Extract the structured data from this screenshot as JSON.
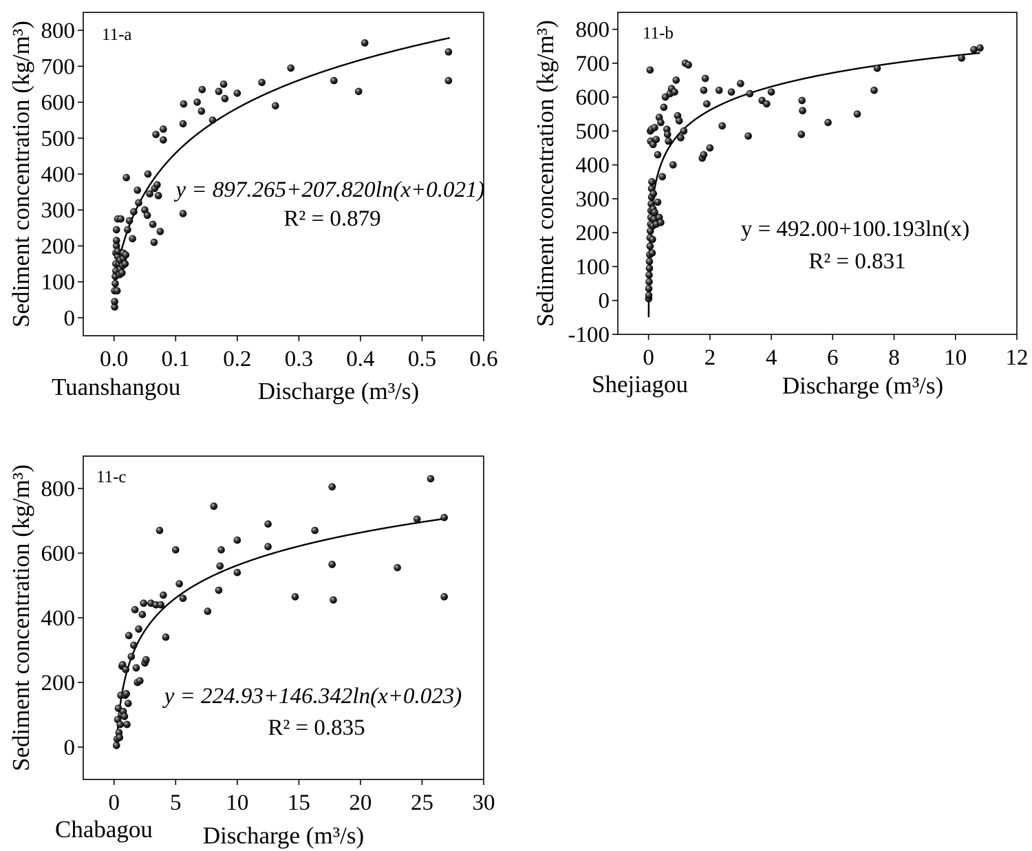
{
  "figure": {
    "panels": [
      {
        "tag": "11-a",
        "site": "Tuanshangou",
        "xlabel": "Discharge (m³/s)",
        "ylabel": "Sediment concentration (kg/m³)",
        "equation": "y = 897.265+207.820ln(x+0.021)",
        "r2": "R² = 0.879"
      },
      {
        "tag": "11-b",
        "site": "Shejiagou",
        "xlabel": "Discharge (m³/s)",
        "ylabel": "Sediment concentration (kg/m³)",
        "equation": "y = 492.00+100.193ln(x)",
        "r2": "R² = 0.831"
      },
      {
        "tag": "11-c",
        "site": "Chabagou",
        "xlabel": "Discharge (m³/s)",
        "ylabel": "Sediment concentration (kg/m³)",
        "equation": "y = 224.93+146.342ln(x+0.023)",
        "r2": "R² = 0.835"
      }
    ]
  },
  "chart_data": [
    {
      "type": "scatter",
      "title": "11-a",
      "xlabel": "Discharge (m³/s)",
      "ylabel": "Sediment concentration (kg/m³)",
      "xlim": [
        -0.05,
        0.6
      ],
      "ylim": [
        -50,
        850
      ],
      "xticks": [
        0.0,
        0.1,
        0.2,
        0.3,
        0.4,
        0.5,
        0.6
      ],
      "xtick_labels": [
        "0.0",
        "0.1",
        "0.2",
        "0.3",
        "0.4",
        "0.5",
        "0.6"
      ],
      "yticks": [
        0,
        100,
        200,
        300,
        400,
        500,
        600,
        700,
        800
      ],
      "fit": {
        "a": 897.265,
        "b": 207.82,
        "c": 0.021,
        "x_range": [
          0.0,
          0.545
        ]
      },
      "points": [
        [
          0.001,
          30
        ],
        [
          0.001,
          45
        ],
        [
          0.001,
          75
        ],
        [
          0.002,
          95
        ],
        [
          0.002,
          115
        ],
        [
          0.003,
          130
        ],
        [
          0.003,
          150
        ],
        [
          0.003,
          180
        ],
        [
          0.004,
          200
        ],
        [
          0.004,
          215
        ],
        [
          0.004,
          245
        ],
        [
          0.005,
          75
        ],
        [
          0.006,
          170
        ],
        [
          0.006,
          185
        ],
        [
          0.006,
          275
        ],
        [
          0.008,
          150
        ],
        [
          0.009,
          120
        ],
        [
          0.01,
          135
        ],
        [
          0.01,
          160
        ],
        [
          0.011,
          275
        ],
        [
          0.013,
          125
        ],
        [
          0.014,
          145
        ],
        [
          0.015,
          165
        ],
        [
          0.015,
          180
        ],
        [
          0.018,
          150
        ],
        [
          0.019,
          175
        ],
        [
          0.02,
          390
        ],
        [
          0.022,
          245
        ],
        [
          0.025,
          270
        ],
        [
          0.03,
          220
        ],
        [
          0.032,
          295
        ],
        [
          0.038,
          355
        ],
        [
          0.04,
          320
        ],
        [
          0.05,
          300
        ],
        [
          0.054,
          285
        ],
        [
          0.055,
          400
        ],
        [
          0.058,
          345
        ],
        [
          0.063,
          260
        ],
        [
          0.065,
          210
        ],
        [
          0.066,
          360
        ],
        [
          0.068,
          510
        ],
        [
          0.07,
          370
        ],
        [
          0.072,
          340
        ],
        [
          0.075,
          240
        ],
        [
          0.08,
          525
        ],
        [
          0.08,
          495
        ],
        [
          0.112,
          290
        ],
        [
          0.112,
          540
        ],
        [
          0.113,
          595
        ],
        [
          0.135,
          600
        ],
        [
          0.142,
          575
        ],
        [
          0.143,
          635
        ],
        [
          0.16,
          550
        ],
        [
          0.17,
          630
        ],
        [
          0.178,
          650
        ],
        [
          0.18,
          610
        ],
        [
          0.2,
          625
        ],
        [
          0.24,
          655
        ],
        [
          0.262,
          590
        ],
        [
          0.287,
          695
        ],
        [
          0.357,
          660
        ],
        [
          0.397,
          630
        ],
        [
          0.407,
          765
        ],
        [
          0.543,
          740
        ],
        [
          0.543,
          660
        ]
      ]
    },
    {
      "type": "scatter",
      "title": "11-b",
      "xlabel": "Discharge (m³/s)",
      "ylabel": "Sediment concentration (kg/m³)",
      "xlim": [
        -1,
        12
      ],
      "ylim": [
        -100,
        850
      ],
      "xticks": [
        0,
        2,
        4,
        6,
        8,
        10,
        12
      ],
      "xtick_labels": [
        "0",
        "2",
        "4",
        "6",
        "8",
        "10",
        "12"
      ],
      "yticks": [
        -100,
        0,
        100,
        200,
        300,
        400,
        500,
        600,
        700,
        800
      ],
      "fit": {
        "a": 492.0,
        "b": 100.193,
        "c": 0,
        "x_range": [
          0.0045,
          10.8
        ]
      },
      "points": [
        [
          0.005,
          5
        ],
        [
          0.01,
          15
        ],
        [
          0.01,
          35
        ],
        [
          0.02,
          55
        ],
        [
          0.02,
          75
        ],
        [
          0.03,
          95
        ],
        [
          0.03,
          115
        ],
        [
          0.04,
          135
        ],
        [
          0.05,
          160
        ],
        [
          0.05,
          185
        ],
        [
          0.06,
          205
        ],
        [
          0.07,
          225
        ],
        [
          0.08,
          245
        ],
        [
          0.08,
          265
        ],
        [
          0.09,
          285
        ],
        [
          0.1,
          305
        ],
        [
          0.1,
          330
        ],
        [
          0.11,
          350
        ],
        [
          0.12,
          140
        ],
        [
          0.13,
          180
        ],
        [
          0.14,
          220
        ],
        [
          0.15,
          270
        ],
        [
          0.16,
          315
        ],
        [
          0.18,
          240
        ],
        [
          0.2,
          260
        ],
        [
          0.25,
          225
        ],
        [
          0.3,
          290
        ],
        [
          0.35,
          245
        ],
        [
          0.4,
          230
        ],
        [
          0.05,
          680
        ],
        [
          0.06,
          500
        ],
        [
          0.07,
          470
        ],
        [
          0.1,
          505
        ],
        [
          0.15,
          460
        ],
        [
          0.2,
          510
        ],
        [
          0.25,
          475
        ],
        [
          0.3,
          430
        ],
        [
          0.35,
          540
        ],
        [
          0.4,
          525
        ],
        [
          0.45,
          365
        ],
        [
          0.5,
          570
        ],
        [
          0.55,
          600
        ],
        [
          0.6,
          505
        ],
        [
          0.62,
          490
        ],
        [
          0.65,
          470
        ],
        [
          0.7,
          610
        ],
        [
          0.75,
          625
        ],
        [
          0.8,
          400
        ],
        [
          0.85,
          615
        ],
        [
          0.9,
          650
        ],
        [
          0.95,
          545
        ],
        [
          1.0,
          530
        ],
        [
          1.05,
          480
        ],
        [
          1.15,
          500
        ],
        [
          1.2,
          700
        ],
        [
          1.3,
          695
        ],
        [
          1.75,
          420
        ],
        [
          1.8,
          430
        ],
        [
          1.85,
          655
        ],
        [
          1.8,
          620
        ],
        [
          1.9,
          580
        ],
        [
          2.0,
          450
        ],
        [
          2.3,
          620
        ],
        [
          2.4,
          515
        ],
        [
          2.7,
          615
        ],
        [
          3.0,
          640
        ],
        [
          3.3,
          610
        ],
        [
          3.25,
          485
        ],
        [
          3.7,
          590
        ],
        [
          3.85,
          580
        ],
        [
          4.0,
          615
        ],
        [
          5.0,
          590
        ],
        [
          5.02,
          560
        ],
        [
          4.98,
          490
        ],
        [
          5.85,
          525
        ],
        [
          6.8,
          550
        ],
        [
          7.35,
          620
        ],
        [
          7.45,
          685
        ],
        [
          10.2,
          715
        ],
        [
          10.6,
          740
        ],
        [
          10.8,
          745
        ]
      ]
    },
    {
      "type": "scatter",
      "title": "11-c",
      "xlabel": "Discharge (m³/s)",
      "ylabel": "Sediment concentration (kg/m³)",
      "xlim": [
        -2.5,
        30
      ],
      "ylim": [
        -100,
        900
      ],
      "xticks": [
        0,
        5,
        10,
        15,
        20,
        25,
        30
      ],
      "xtick_labels": [
        "0",
        "5",
        "10",
        "15",
        "20",
        "25",
        "30"
      ],
      "yticks": [
        0,
        200,
        400,
        600,
        800
      ],
      "fit": {
        "a": 224.93,
        "b": 146.342,
        "c": 0.023,
        "x_range": [
          0.2,
          26.8
        ]
      },
      "points": [
        [
          0.2,
          5
        ],
        [
          0.25,
          25
        ],
        [
          0.3,
          85
        ],
        [
          0.35,
          120
        ],
        [
          0.4,
          45
        ],
        [
          0.45,
          30
        ],
        [
          0.5,
          70
        ],
        [
          0.55,
          160
        ],
        [
          0.6,
          100
        ],
        [
          0.65,
          250
        ],
        [
          0.7,
          255
        ],
        [
          0.75,
          110
        ],
        [
          0.85,
          95
        ],
        [
          0.9,
          160
        ],
        [
          0.95,
          240
        ],
        [
          1.0,
          165
        ],
        [
          1.05,
          70
        ],
        [
          1.15,
          135
        ],
        [
          1.2,
          345
        ],
        [
          1.4,
          280
        ],
        [
          1.6,
          315
        ],
        [
          1.7,
          425
        ],
        [
          1.8,
          245
        ],
        [
          1.9,
          200
        ],
        [
          2.0,
          365
        ],
        [
          2.1,
          205
        ],
        [
          2.3,
          410
        ],
        [
          2.4,
          445
        ],
        [
          2.5,
          260
        ],
        [
          2.6,
          270
        ],
        [
          3.0,
          445
        ],
        [
          3.4,
          440
        ],
        [
          3.7,
          670
        ],
        [
          3.8,
          440
        ],
        [
          4.0,
          470
        ],
        [
          4.2,
          340
        ],
        [
          5.0,
          610
        ],
        [
          5.3,
          505
        ],
        [
          5.6,
          460
        ],
        [
          7.6,
          420
        ],
        [
          8.1,
          745
        ],
        [
          8.5,
          485
        ],
        [
          8.6,
          560
        ],
        [
          8.7,
          610
        ],
        [
          10.0,
          540
        ],
        [
          10.0,
          640
        ],
        [
          12.5,
          620
        ],
        [
          12.5,
          690
        ],
        [
          14.7,
          465
        ],
        [
          16.3,
          670
        ],
        [
          17.7,
          805
        ],
        [
          17.7,
          565
        ],
        [
          17.8,
          455
        ],
        [
          23.0,
          555
        ],
        [
          24.6,
          705
        ],
        [
          25.7,
          830
        ],
        [
          26.8,
          710
        ],
        [
          26.8,
          465
        ]
      ]
    }
  ]
}
